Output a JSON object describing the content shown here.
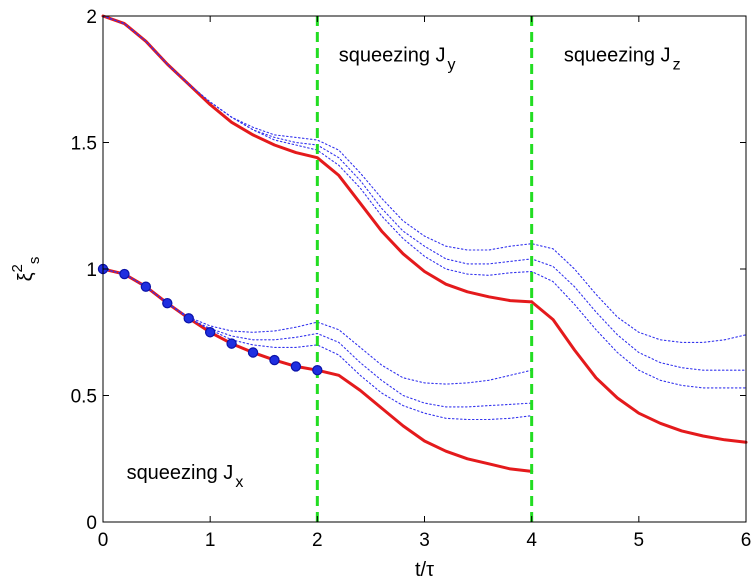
{
  "chart_data": {
    "type": "line",
    "xlabel": "t/τ",
    "ylabel": "ξ",
    "ylabel_superscript": "2",
    "ylabel_subscript": "s",
    "xlim": [
      0,
      6
    ],
    "ylim": [
      0,
      2
    ],
    "xticks": [
      "0",
      "1",
      "2",
      "3",
      "4",
      "5",
      "6"
    ],
    "yticks": [
      "0",
      "0.5",
      "1",
      "1.5",
      "2"
    ],
    "grid": false,
    "legend": "none",
    "colors": {
      "red_line": "#e41a1c",
      "blue_dotted": "#3333ee",
      "blue_marker": "#1f2ee0",
      "green_dashed": "#22dd22",
      "axes": "#000000"
    },
    "vertical_lines": [
      {
        "x": 2,
        "style": "dashed",
        "color": "#22dd22"
      },
      {
        "x": 4,
        "style": "dashed",
        "color": "#22dd22"
      }
    ],
    "annotations": [
      {
        "text_main": "squeezing J",
        "text_sub": "y",
        "x": 2.2,
        "y": 1.82
      },
      {
        "text_main": "squeezing J",
        "text_sub": "z",
        "x": 4.3,
        "y": 1.82
      },
      {
        "text_main": "squeezing J",
        "text_sub": "x",
        "x": 0.22,
        "y": 0.17
      }
    ],
    "series": [
      {
        "style": "solid",
        "color": "#e41a1c",
        "x": [
          0,
          0.2,
          0.4,
          0.6,
          0.8,
          1.0,
          1.2,
          1.4,
          1.6,
          1.8,
          2.0,
          2.2,
          2.4,
          2.6,
          2.8,
          3.0,
          3.2,
          3.4,
          3.6,
          3.8,
          4.0
        ],
        "y": [
          2.0,
          1.97,
          1.9,
          1.81,
          1.73,
          1.65,
          1.58,
          1.53,
          1.49,
          1.46,
          1.44,
          1.37,
          1.26,
          1.15,
          1.06,
          0.99,
          0.94,
          0.91,
          0.89,
          0.875,
          0.87
        ]
      },
      {
        "style": "solid",
        "color": "#e41a1c",
        "x": [
          4.0,
          4.2,
          4.4,
          4.6,
          4.8,
          5.0,
          5.2,
          5.4,
          5.6,
          5.8,
          6.0
        ],
        "y": [
          0.87,
          0.8,
          0.68,
          0.57,
          0.49,
          0.43,
          0.39,
          0.36,
          0.34,
          0.325,
          0.315
        ]
      },
      {
        "style": "solid",
        "color": "#e41a1c",
        "x": [
          0,
          0.2,
          0.4,
          0.6,
          0.8,
          1.0,
          1.2,
          1.4,
          1.6,
          1.8,
          2.0,
          2.2,
          2.4,
          2.6,
          2.8,
          3.0,
          3.2,
          3.4,
          3.6,
          3.8,
          4.0
        ],
        "y": [
          1.0,
          0.98,
          0.93,
          0.865,
          0.805,
          0.75,
          0.705,
          0.67,
          0.64,
          0.615,
          0.6,
          0.58,
          0.52,
          0.45,
          0.38,
          0.32,
          0.28,
          0.25,
          0.23,
          0.21,
          0.2
        ]
      },
      {
        "style": "dotted",
        "color": "#3333ee",
        "x": [
          0,
          0.2,
          0.4,
          0.6,
          0.8,
          1.0,
          1.2,
          1.4,
          1.6,
          1.8,
          2.0,
          2.2,
          2.4,
          2.6,
          2.8,
          3.0,
          3.2,
          3.4,
          3.6,
          3.8,
          4.0,
          4.2,
          4.4,
          4.6,
          4.8,
          5.0,
          5.2,
          5.4,
          5.6,
          5.8,
          6.0
        ],
        "y": [
          2.0,
          1.97,
          1.9,
          1.81,
          1.73,
          1.66,
          1.6,
          1.56,
          1.53,
          1.52,
          1.51,
          1.47,
          1.38,
          1.28,
          1.19,
          1.13,
          1.09,
          1.075,
          1.075,
          1.09,
          1.1,
          1.08,
          1.0,
          0.9,
          0.81,
          0.75,
          0.72,
          0.71,
          0.71,
          0.72,
          0.74
        ]
      },
      {
        "style": "dotted",
        "color": "#3333ee",
        "x": [
          0,
          0.2,
          0.4,
          0.6,
          0.8,
          1.0,
          1.2,
          1.4,
          1.6,
          1.8,
          2.0,
          2.2,
          2.4,
          2.6,
          2.8,
          3.0,
          3.2,
          3.4,
          3.6,
          3.8,
          4.0,
          4.2,
          4.4,
          4.6,
          4.8,
          5.0,
          5.2,
          5.4,
          5.6,
          5.8,
          6.0
        ],
        "y": [
          2.0,
          1.97,
          1.9,
          1.81,
          1.73,
          1.66,
          1.6,
          1.55,
          1.52,
          1.5,
          1.49,
          1.44,
          1.35,
          1.24,
          1.15,
          1.09,
          1.04,
          1.02,
          1.02,
          1.03,
          1.04,
          1.01,
          0.93,
          0.83,
          0.74,
          0.67,
          0.63,
          0.61,
          0.6,
          0.6,
          0.6
        ]
      },
      {
        "style": "dotted",
        "color": "#3333ee",
        "x": [
          0,
          0.2,
          0.4,
          0.6,
          0.8,
          1.0,
          1.2,
          1.4,
          1.6,
          1.8,
          2.0,
          2.2,
          2.4,
          2.6,
          2.8,
          3.0,
          3.2,
          3.4,
          3.6,
          3.8,
          4.0,
          4.2,
          4.4,
          4.6,
          4.8,
          5.0,
          5.2,
          5.4,
          5.6,
          5.8,
          6.0
        ],
        "y": [
          2.0,
          1.97,
          1.9,
          1.81,
          1.73,
          1.66,
          1.6,
          1.55,
          1.51,
          1.49,
          1.47,
          1.41,
          1.32,
          1.21,
          1.12,
          1.05,
          1.0,
          0.98,
          0.975,
          0.985,
          0.99,
          0.95,
          0.86,
          0.76,
          0.67,
          0.6,
          0.56,
          0.54,
          0.53,
          0.53,
          0.53
        ]
      },
      {
        "style": "dotted",
        "color": "#3333ee",
        "x": [
          0,
          0.2,
          0.4,
          0.6,
          0.8,
          1.0,
          1.2,
          1.4,
          1.6,
          1.8,
          2.0,
          2.2,
          2.4,
          2.6,
          2.8,
          3.0,
          3.2,
          3.4,
          3.6,
          3.8,
          4.0
        ],
        "y": [
          1.0,
          0.98,
          0.93,
          0.865,
          0.81,
          0.775,
          0.755,
          0.75,
          0.755,
          0.77,
          0.79,
          0.76,
          0.69,
          0.62,
          0.57,
          0.55,
          0.545,
          0.55,
          0.56,
          0.58,
          0.6
        ]
      },
      {
        "style": "dotted",
        "color": "#3333ee",
        "x": [
          0,
          0.2,
          0.4,
          0.6,
          0.8,
          1.0,
          1.2,
          1.4,
          1.6,
          1.8,
          2.0,
          2.2,
          2.4,
          2.6,
          2.8,
          3.0,
          3.2,
          3.4,
          3.6,
          3.8,
          4.0
        ],
        "y": [
          1.0,
          0.98,
          0.93,
          0.865,
          0.805,
          0.765,
          0.735,
          0.72,
          0.72,
          0.73,
          0.745,
          0.71,
          0.63,
          0.56,
          0.5,
          0.47,
          0.455,
          0.455,
          0.46,
          0.465,
          0.47
        ]
      },
      {
        "style": "dotted",
        "color": "#3333ee",
        "x": [
          0,
          0.2,
          0.4,
          0.6,
          0.8,
          1.0,
          1.2,
          1.4,
          1.6,
          1.8,
          2.0,
          2.2,
          2.4,
          2.6,
          2.8,
          3.0,
          3.2,
          3.4,
          3.6,
          3.8,
          4.0
        ],
        "y": [
          1.0,
          0.98,
          0.93,
          0.865,
          0.805,
          0.76,
          0.72,
          0.7,
          0.69,
          0.69,
          0.7,
          0.66,
          0.58,
          0.51,
          0.46,
          0.43,
          0.41,
          0.405,
          0.405,
          0.41,
          0.42
        ]
      },
      {
        "style": "markers",
        "color": "#1f2ee0",
        "x": [
          0,
          0.2,
          0.4,
          0.6,
          0.8,
          1.0,
          1.2,
          1.4,
          1.6,
          1.8,
          2.0
        ],
        "y": [
          1.0,
          0.98,
          0.93,
          0.865,
          0.805,
          0.75,
          0.705,
          0.67,
          0.64,
          0.615,
          0.6
        ]
      }
    ]
  }
}
